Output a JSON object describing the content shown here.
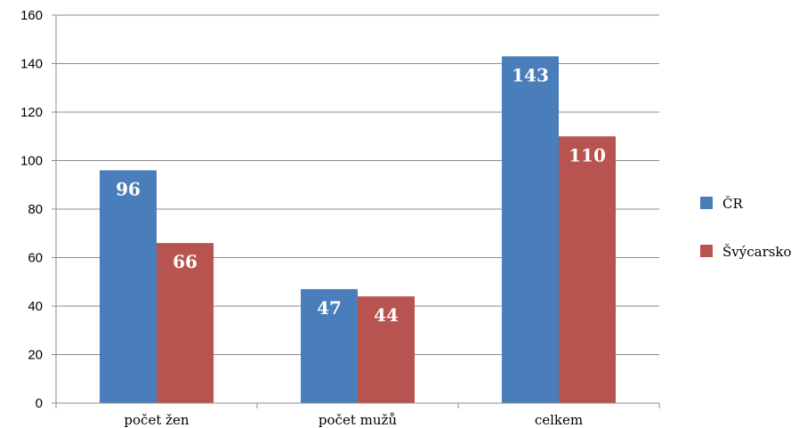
{
  "chart_data": {
    "type": "bar",
    "categories": [
      "počet žen",
      "počet mužů",
      "celkem"
    ],
    "series": [
      {
        "name": "ČR",
        "values": [
          96,
          47,
          143
        ],
        "color": "#4A7EBB"
      },
      {
        "name": "Švýcarsko",
        "values": [
          66,
          44,
          110
        ],
        "color": "#B85450"
      }
    ],
    "ylim": [
      0,
      160
    ],
    "yticks": [
      0,
      20,
      40,
      60,
      80,
      100,
      120,
      140,
      160
    ],
    "grid": true,
    "legend_position": "right",
    "data_labels": true
  }
}
